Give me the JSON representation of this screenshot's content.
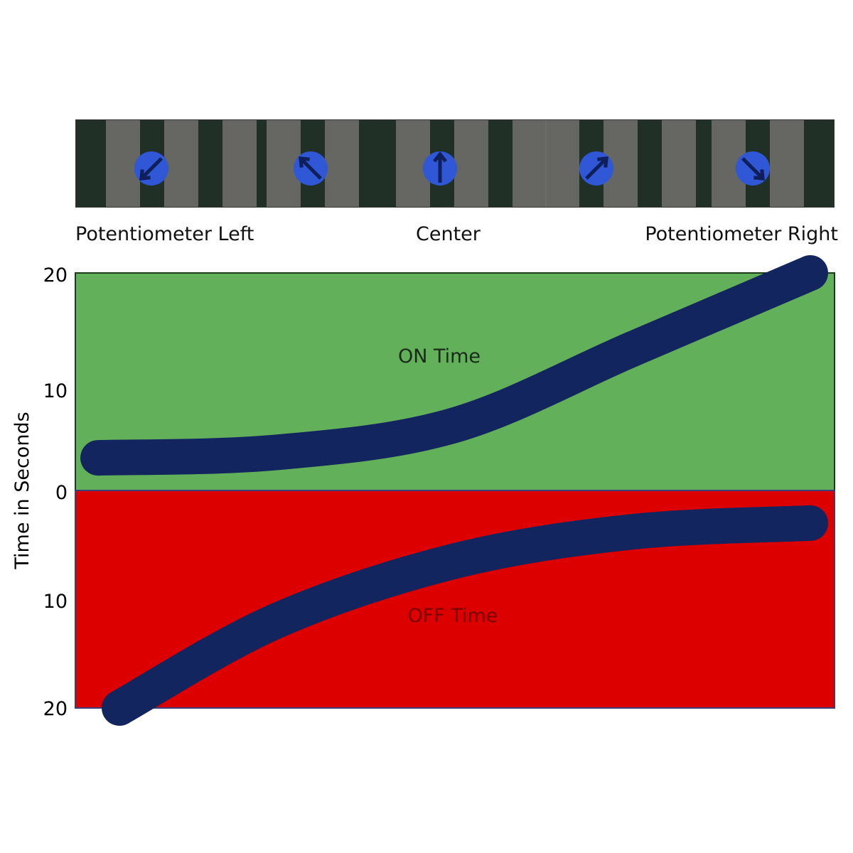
{
  "photo_strip": {
    "labels": {
      "left": "Potentiometer Left",
      "center": "Center",
      "right": "Potentiometer Right"
    },
    "knob_color": "#2f57d6",
    "panel_color": "#20302a",
    "slat_color": "#6e6e6a"
  },
  "chart_data": {
    "type": "area",
    "ylabel": "Time in Seconds",
    "y_ticks_top": [
      "20",
      "10",
      "0"
    ],
    "y_ticks_bottom": [
      "10",
      "20"
    ],
    "upper_panel": {
      "label": "ON Time",
      "color": "#63b05a",
      "ylim": [
        0,
        20
      ]
    },
    "lower_panel": {
      "label": "OFF Time",
      "color": "#dd0000",
      "ylim": [
        0,
        20
      ]
    },
    "line_color": "#13255e",
    "x_positions": [
      "Potentiometer Left",
      "Center",
      "Potentiometer Right"
    ],
    "series": [
      {
        "name": "ON Time",
        "x": [
          0,
          0.25,
          0.5,
          0.75,
          1.0
        ],
        "values": [
          3,
          3.5,
          6,
          13,
          20
        ]
      },
      {
        "name": "OFF Time",
        "x": [
          0.03,
          0.25,
          0.5,
          0.75,
          1.0
        ],
        "values": [
          20,
          12,
          6.5,
          3.8,
          3
        ]
      }
    ]
  }
}
